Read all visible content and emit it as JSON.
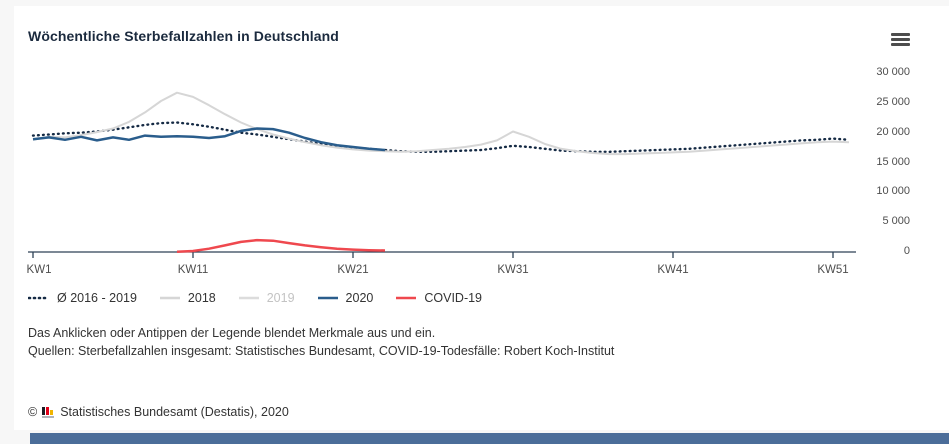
{
  "title": "Wöchentliche Sterbefallzahlen in Deutschland",
  "menu": {
    "icon": "hamburger-menu-icon"
  },
  "colors": {
    "title_text": "#1b2a3e",
    "axis": "#2e4156",
    "tick_label": "#4d4d4d",
    "avg": "#152a44",
    "y2018": "#d6d6d6",
    "y2019": "#dcdcdc",
    "y2019_label": "#c3c3c3",
    "y2020": "#2a5d8c",
    "covid": "#ef484e",
    "body_text": "#333333",
    "bottom_bar": "#4b6d99"
  },
  "chart_data": {
    "type": "line",
    "title": "Wöchentliche Sterbefallzahlen in Deutschland",
    "grid": false,
    "legend_position": "bottom-left",
    "x_axis": {
      "unit": "Kalenderwoche",
      "tick_labels": [
        "KW1",
        "KW11",
        "KW21",
        "KW31",
        "KW41",
        "KW51"
      ],
      "tick_weeks": [
        1,
        11,
        21,
        31,
        41,
        51
      ],
      "range_weeks": [
        1,
        52
      ]
    },
    "y_axis": {
      "position": "right",
      "tick_labels": [
        "30 000",
        "25 000",
        "20 000",
        "15 000",
        "10 000",
        "5 000",
        "0"
      ],
      "tick_values": [
        30000,
        25000,
        20000,
        15000,
        10000,
        5000,
        0
      ],
      "range": [
        0,
        30000
      ]
    },
    "series": [
      {
        "name": "Ø 2016 - 2019",
        "style": "dotted",
        "color_key": "avg",
        "hidden": false,
        "start_week": 1,
        "values": [
          19500,
          19700,
          19900,
          20000,
          20200,
          20500,
          20900,
          21300,
          21600,
          21700,
          21400,
          21000,
          20500,
          20000,
          19700,
          19300,
          18900,
          18500,
          18100,
          17800,
          17500,
          17300,
          17100,
          16900,
          16800,
          16800,
          16900,
          17000,
          17100,
          17400,
          17800,
          17600,
          17300,
          17000,
          16900,
          16800,
          16800,
          16900,
          17000,
          17100,
          17200,
          17300,
          17500,
          17700,
          17900,
          18100,
          18300,
          18500,
          18700,
          18800,
          19000,
          18800
        ]
      },
      {
        "name": "2018",
        "style": "solid",
        "color_key": "y2018",
        "hidden": false,
        "start_week": 1,
        "values": [
          18800,
          19300,
          19200,
          19600,
          20100,
          20700,
          21800,
          23400,
          25300,
          26700,
          26000,
          24600,
          23100,
          21700,
          20600,
          19700,
          19000,
          18400,
          17900,
          17500,
          17200,
          17000,
          16900,
          16800,
          16900,
          17100,
          17300,
          17600,
          18000,
          18700,
          20200,
          19300,
          18100,
          17300,
          16900,
          16600,
          16400,
          16400,
          16500,
          16600,
          16700,
          16800,
          17000,
          17200,
          17400,
          17600,
          17800,
          18000,
          18200,
          18400,
          18500,
          18400
        ]
      },
      {
        "name": "2019",
        "style": "solid",
        "color_key": "y2019",
        "hidden": true,
        "start_week": 1,
        "values": []
      },
      {
        "name": "2020",
        "style": "solid",
        "color_key": "y2020",
        "hidden": false,
        "start_week": 1,
        "values": [
          18900,
          19200,
          18800,
          19300,
          18700,
          19200,
          18800,
          19500,
          19300,
          19400,
          19300,
          19100,
          19400,
          20300,
          20700,
          20600,
          20000,
          19100,
          18400,
          17900,
          17600,
          17300,
          17100
        ]
      },
      {
        "name": "COVID-19",
        "style": "solid",
        "color_key": "covid",
        "hidden": false,
        "start_week": 10,
        "values": [
          40,
          160,
          550,
          1100,
          1700,
          2000,
          1900,
          1500,
          1100,
          800,
          550,
          400,
          300,
          250
        ]
      }
    ]
  },
  "notes": {
    "line1": "Das Anklicken oder Antippen der Legende blendet Merkmale aus und ein.",
    "line2": "Quellen: Sterbefallzahlen insgesamt: Statistisches Bundesamt, COVID-19-Todesfälle: Robert Koch-Institut"
  },
  "copyright": {
    "symbol": "©",
    "icon": "destatis-bar-chart-icon",
    "text": "Statistisches Bundesamt (Destatis), 2020"
  }
}
